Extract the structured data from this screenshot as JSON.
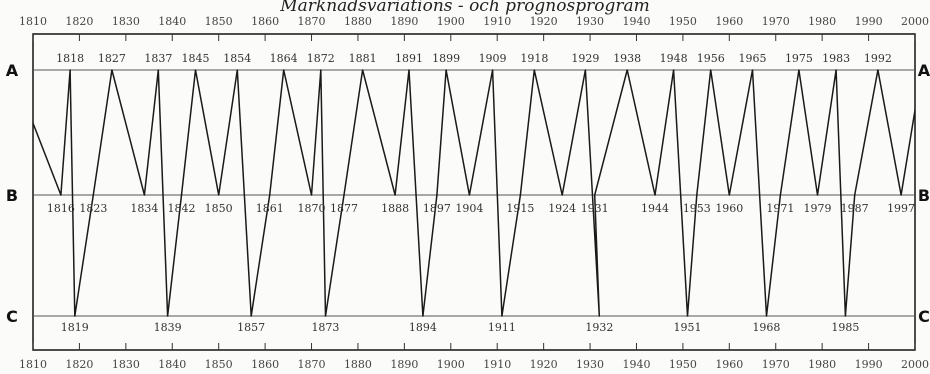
{
  "title": "Marknadsvariations - och prognosprogram",
  "chart_data": {
    "type": "line",
    "title": "Marknadsvariations - och prognosprogram",
    "xlim": [
      1810,
      2000
    ],
    "x_ticks": [
      1810,
      1820,
      1830,
      1840,
      1850,
      1860,
      1870,
      1880,
      1890,
      1900,
      1910,
      1920,
      1930,
      1940,
      1950,
      1960,
      1970,
      1980,
      1990,
      2000
    ],
    "levels": [
      "A",
      "B",
      "C"
    ],
    "grid": false,
    "series": [
      {
        "points": [
          {
            "year": 1816,
            "level": "B",
            "label": "1816"
          },
          {
            "year": 1818,
            "level": "A",
            "label": "1818"
          },
          {
            "year": 1819,
            "level": "C",
            "label": "1819"
          },
          {
            "year": 1823,
            "level": "B",
            "label": "1823"
          },
          {
            "year": 1827,
            "level": "A",
            "label": "1827"
          },
          {
            "year": 1834,
            "level": "B",
            "label": "1834"
          },
          {
            "year": 1837,
            "level": "A",
            "label": "1837"
          },
          {
            "year": 1839,
            "level": "C",
            "label": "1839"
          },
          {
            "year": 1842,
            "level": "B",
            "label": "1842"
          },
          {
            "year": 1845,
            "level": "A",
            "label": "1845"
          },
          {
            "year": 1850,
            "level": "B",
            "label": "1850"
          },
          {
            "year": 1854,
            "level": "A",
            "label": "1854"
          },
          {
            "year": 1857,
            "level": "C",
            "label": "1857"
          },
          {
            "year": 1861,
            "level": "B",
            "label": "1861"
          },
          {
            "year": 1864,
            "level": "A",
            "label": "1864"
          },
          {
            "year": 1870,
            "level": "B",
            "label": "1870"
          },
          {
            "year": 1872,
            "level": "A",
            "label": "1872"
          },
          {
            "year": 1873,
            "level": "C",
            "label": "1873"
          },
          {
            "year": 1877,
            "level": "B",
            "label": "1877"
          },
          {
            "year": 1881,
            "level": "A",
            "label": "1881"
          },
          {
            "year": 1888,
            "level": "B",
            "label": "1888"
          },
          {
            "year": 1891,
            "level": "A",
            "label": "1891"
          },
          {
            "year": 1894,
            "level": "C",
            "label": "1894"
          },
          {
            "year": 1897,
            "level": "B",
            "label": "1897"
          },
          {
            "year": 1899,
            "level": "A",
            "label": "1899"
          },
          {
            "year": 1904,
            "level": "B",
            "label": "1904"
          },
          {
            "year": 1909,
            "level": "A",
            "label": "1909"
          },
          {
            "year": 1911,
            "level": "C",
            "label": "1911"
          },
          {
            "year": 1915,
            "level": "B",
            "label": "1915"
          },
          {
            "year": 1918,
            "level": "A",
            "label": "1918"
          },
          {
            "year": 1924,
            "level": "B",
            "label": "1924"
          },
          {
            "year": 1929,
            "level": "A",
            "label": "1929"
          },
          {
            "year": 1932,
            "level": "C",
            "label": "1932"
          },
          {
            "year": 1931,
            "level": "B",
            "label": "1931"
          },
          {
            "year": 1938,
            "level": "A",
            "label": "1938"
          },
          {
            "year": 1944,
            "level": "B",
            "label": "1944"
          },
          {
            "year": 1948,
            "level": "A",
            "label": "1948"
          },
          {
            "year": 1951,
            "level": "C",
            "label": "1951"
          },
          {
            "year": 1953,
            "level": "B",
            "label": "1953"
          },
          {
            "year": 1956,
            "level": "A",
            "label": "1956"
          },
          {
            "year": 1960,
            "level": "B",
            "label": "1960"
          },
          {
            "year": 1965,
            "level": "A",
            "label": "1965"
          },
          {
            "year": 1968,
            "level": "C",
            "label": "1968"
          },
          {
            "year": 1971,
            "level": "B",
            "label": "1971"
          },
          {
            "year": 1975,
            "level": "A",
            "label": "1975"
          },
          {
            "year": 1979,
            "level": "B",
            "label": "1979"
          },
          {
            "year": 1983,
            "level": "A",
            "label": "1983"
          },
          {
            "year": 1985,
            "level": "C",
            "label": "1985"
          },
          {
            "year": 1987,
            "level": "B",
            "label": "1987"
          },
          {
            "year": 1992,
            "level": "A",
            "label": "1992"
          },
          {
            "year": 1997,
            "level": "B",
            "label": "1997"
          }
        ]
      }
    ],
    "line_color": "#1a1a1a"
  }
}
